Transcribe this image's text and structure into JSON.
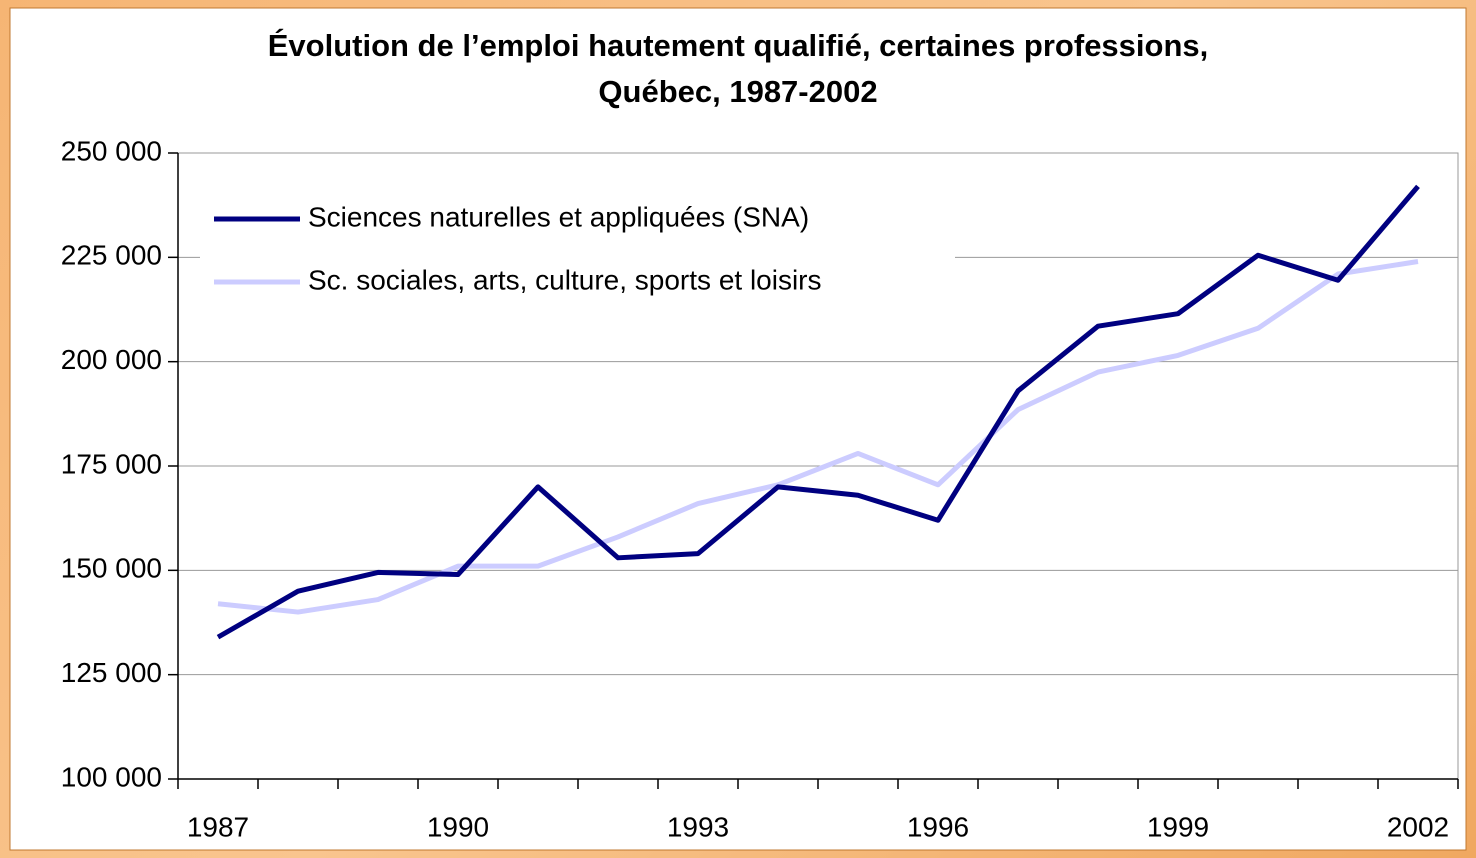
{
  "chart_data": {
    "type": "line",
    "title": [
      "Évolution de l’emploi hautement qualifié, certaines professions,",
      "Québec, 1987-2002"
    ],
    "categories": [
      "1987",
      null,
      null,
      "1990",
      null,
      null,
      "1993",
      null,
      null,
      "1996",
      null,
      null,
      "1999",
      null,
      null,
      "2002"
    ],
    "series": [
      {
        "name": "Sciences naturelles et appliquées (SNA)",
        "color": "#000080",
        "values": [
          134000,
          145000,
          149500,
          149000,
          170000,
          153000,
          154000,
          170000,
          168000,
          162000,
          193000,
          208500,
          211500,
          225500,
          219500,
          242000
        ]
      },
      {
        "name": "Sc. sociales, arts, culture, sports et loisirs",
        "color": "#ccccff",
        "values": [
          142000,
          140000,
          143000,
          151000,
          151000,
          158000,
          166000,
          170500,
          178000,
          170500,
          188500,
          197500,
          201500,
          208000,
          221000,
          224000
        ]
      }
    ],
    "ylim": [
      100000,
      250000
    ],
    "yticks": [
      {
        "value": 100000,
        "label": "100 000"
      },
      {
        "value": 125000,
        "label": "125 000"
      },
      {
        "value": 150000,
        "label": "150 000"
      },
      {
        "value": 175000,
        "label": "175 000"
      },
      {
        "value": 200000,
        "label": "200 000"
      },
      {
        "value": 225000,
        "label": "225 000"
      },
      {
        "value": 250000,
        "label": "250 000"
      }
    ],
    "grid": true,
    "legend": "upper left"
  }
}
